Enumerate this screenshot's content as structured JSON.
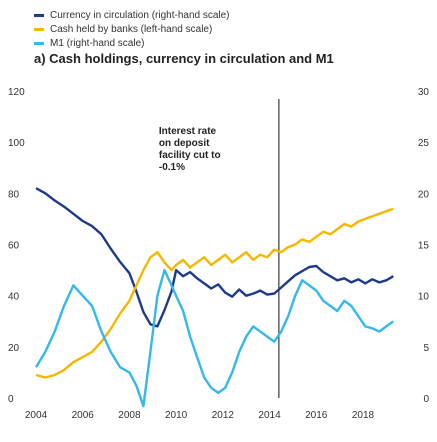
{
  "chart_data": {
    "type": "line",
    "title": "a) Cash holdings, currency in circulation and M1",
    "x_ticks": [
      "2004",
      "2006",
      "2008",
      "2010",
      "2012",
      "2014",
      "2016",
      "2018"
    ],
    "xlim": [
      2004,
      2019.5
    ],
    "y_left": {
      "lim": [
        0,
        120
      ],
      "ticks": [
        0,
        20,
        40,
        60,
        80,
        100,
        120
      ]
    },
    "y_right": {
      "lim": [
        0,
        30
      ],
      "ticks": [
        0,
        5,
        10,
        15,
        20,
        25,
        30
      ]
    },
    "legend_placement": "top-left",
    "annotation": {
      "lines": [
        "Interest rate",
        "on deposit",
        "facility cut to",
        "-0.1%"
      ],
      "x": 2014.4
    },
    "series": [
      {
        "name": "Currency in circulation (right-hand scale)",
        "axis": "right",
        "color": "#1e3a8a",
        "points": [
          [
            2004,
            20.5
          ],
          [
            2004.4,
            20.0
          ],
          [
            2004.8,
            19.3
          ],
          [
            2005.2,
            18.7
          ],
          [
            2005.6,
            18.0
          ],
          [
            2006.0,
            17.3
          ],
          [
            2006.4,
            16.8
          ],
          [
            2006.8,
            16.0
          ],
          [
            2007.2,
            14.6
          ],
          [
            2007.6,
            13.3
          ],
          [
            2008.0,
            12.2
          ],
          [
            2008.3,
            10.4
          ],
          [
            2008.6,
            8.4
          ],
          [
            2008.9,
            7.2
          ],
          [
            2009.2,
            7.0
          ],
          [
            2009.5,
            8.6
          ],
          [
            2009.8,
            10.4
          ],
          [
            2010.0,
            12.5
          ],
          [
            2010.3,
            11.9
          ],
          [
            2010.6,
            12.3
          ],
          [
            2010.9,
            11.7
          ],
          [
            2011.2,
            11.2
          ],
          [
            2011.5,
            10.7
          ],
          [
            2011.8,
            11.1
          ],
          [
            2012.1,
            10.3
          ],
          [
            2012.4,
            9.9
          ],
          [
            2012.7,
            10.6
          ],
          [
            2013.0,
            10.0
          ],
          [
            2013.3,
            10.2
          ],
          [
            2013.6,
            10.5
          ],
          [
            2013.9,
            10.1
          ],
          [
            2014.2,
            10.2
          ],
          [
            2014.5,
            10.8
          ],
          [
            2014.8,
            11.4
          ],
          [
            2015.1,
            12.0
          ],
          [
            2015.4,
            12.4
          ],
          [
            2015.7,
            12.8
          ],
          [
            2016.0,
            12.9
          ],
          [
            2016.3,
            12.3
          ],
          [
            2016.6,
            11.9
          ],
          [
            2016.9,
            11.5
          ],
          [
            2017.2,
            11.7
          ],
          [
            2017.5,
            11.3
          ],
          [
            2017.8,
            11.6
          ],
          [
            2018.1,
            11.2
          ],
          [
            2018.4,
            11.6
          ],
          [
            2018.7,
            11.3
          ],
          [
            2019.0,
            11.5
          ],
          [
            2019.3,
            11.9
          ]
        ]
      },
      {
        "name": "Cash held by banks (left-hand scale)",
        "axis": "left",
        "color": "#f5b700",
        "points": [
          [
            2004,
            9
          ],
          [
            2004.4,
            8
          ],
          [
            2004.8,
            9
          ],
          [
            2005.2,
            11
          ],
          [
            2005.6,
            14
          ],
          [
            2006.0,
            16
          ],
          [
            2006.4,
            18
          ],
          [
            2006.8,
            22
          ],
          [
            2007.2,
            27
          ],
          [
            2007.6,
            33
          ],
          [
            2008.0,
            38
          ],
          [
            2008.3,
            44
          ],
          [
            2008.6,
            50
          ],
          [
            2008.9,
            55
          ],
          [
            2009.2,
            57
          ],
          [
            2009.5,
            53
          ],
          [
            2009.8,
            50
          ],
          [
            2010.0,
            52
          ],
          [
            2010.3,
            54
          ],
          [
            2010.6,
            51
          ],
          [
            2010.9,
            53
          ],
          [
            2011.2,
            55
          ],
          [
            2011.5,
            52
          ],
          [
            2011.8,
            54
          ],
          [
            2012.1,
            56
          ],
          [
            2012.4,
            53
          ],
          [
            2012.7,
            55
          ],
          [
            2013.0,
            57
          ],
          [
            2013.3,
            54
          ],
          [
            2013.6,
            56
          ],
          [
            2013.9,
            55
          ],
          [
            2014.2,
            58
          ],
          [
            2014.5,
            57
          ],
          [
            2014.8,
            59
          ],
          [
            2015.1,
            60
          ],
          [
            2015.4,
            62
          ],
          [
            2015.7,
            61
          ],
          [
            2016.0,
            63
          ],
          [
            2016.3,
            65
          ],
          [
            2016.6,
            64
          ],
          [
            2016.9,
            66
          ],
          [
            2017.2,
            68
          ],
          [
            2017.5,
            67
          ],
          [
            2017.8,
            69
          ],
          [
            2018.1,
            70
          ],
          [
            2018.4,
            71
          ],
          [
            2018.7,
            72
          ],
          [
            2019.0,
            73
          ],
          [
            2019.3,
            74
          ]
        ]
      },
      {
        "name": "M1 (right-hand scale)",
        "axis": "right",
        "color": "#35b8ea",
        "points": [
          [
            2004,
            3.0
          ],
          [
            2004.4,
            4.5
          ],
          [
            2004.8,
            6.5
          ],
          [
            2005.2,
            9.0
          ],
          [
            2005.6,
            11.0
          ],
          [
            2006.0,
            10.0
          ],
          [
            2006.4,
            9.0
          ],
          [
            2006.8,
            6.5
          ],
          [
            2007.2,
            4.5
          ],
          [
            2007.6,
            3.0
          ],
          [
            2008.0,
            2.5
          ],
          [
            2008.3,
            1.2
          ],
          [
            2008.6,
            -0.8
          ],
          [
            2008.9,
            4.5
          ],
          [
            2009.2,
            10.0
          ],
          [
            2009.5,
            12.5
          ],
          [
            2009.8,
            11.0
          ],
          [
            2010.0,
            10.0
          ],
          [
            2010.3,
            8.5
          ],
          [
            2010.6,
            6.0
          ],
          [
            2010.9,
            4.0
          ],
          [
            2011.2,
            2.0
          ],
          [
            2011.5,
            1.0
          ],
          [
            2011.8,
            0.5
          ],
          [
            2012.1,
            1.0
          ],
          [
            2012.4,
            2.5
          ],
          [
            2012.7,
            4.5
          ],
          [
            2013.0,
            6.0
          ],
          [
            2013.3,
            7.0
          ],
          [
            2013.6,
            6.5
          ],
          [
            2013.9,
            6.0
          ],
          [
            2014.2,
            5.5
          ],
          [
            2014.5,
            6.5
          ],
          [
            2014.8,
            8.0
          ],
          [
            2015.1,
            10.0
          ],
          [
            2015.4,
            11.5
          ],
          [
            2015.7,
            11.0
          ],
          [
            2016.0,
            10.5
          ],
          [
            2016.3,
            9.5
          ],
          [
            2016.6,
            9.0
          ],
          [
            2016.9,
            8.5
          ],
          [
            2017.2,
            9.5
          ],
          [
            2017.5,
            9.0
          ],
          [
            2017.8,
            8.0
          ],
          [
            2018.1,
            7.0
          ],
          [
            2018.4,
            6.8
          ],
          [
            2018.7,
            6.5
          ],
          [
            2019.0,
            7.0
          ],
          [
            2019.3,
            7.5
          ]
        ]
      }
    ]
  }
}
